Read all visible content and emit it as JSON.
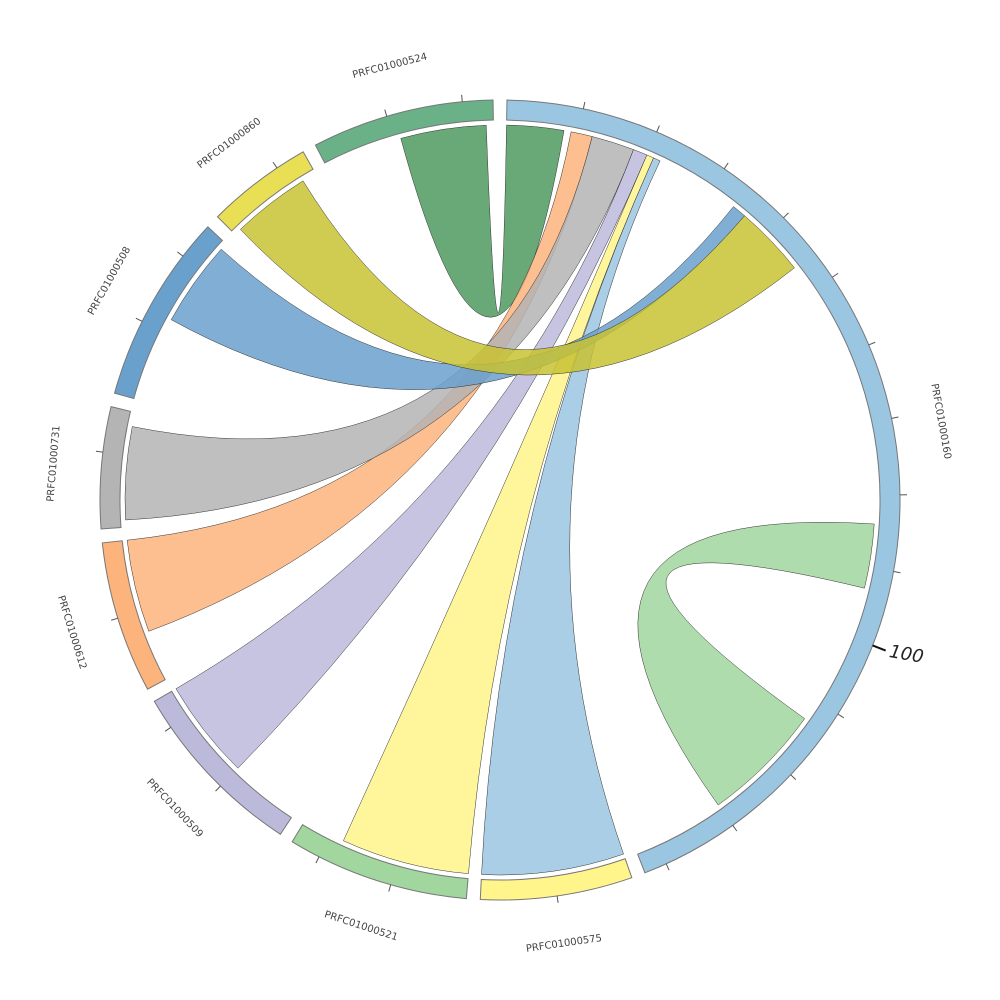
{
  "chart_data": {
    "type": "chord",
    "tick_interval": 10,
    "segments": [
      {
        "name": "PRFC01000160",
        "length": 143,
        "color": "#9ac6e2",
        "labeled_ticks": [
          100
        ]
      },
      {
        "name": "PRFC01000575",
        "length": 20,
        "color": "#fff58a"
      },
      {
        "name": "PRFC01000521",
        "length": 24,
        "color": "#a1d69e"
      },
      {
        "name": "PRFC01000509",
        "length": 24,
        "color": "#bcbadb"
      },
      {
        "name": "PRFC01000612",
        "length": 20,
        "color": "#fdb37c"
      },
      {
        "name": "PRFC01000731",
        "length": 16,
        "color": "#b4b4b4"
      },
      {
        "name": "PRFC01000508",
        "length": 25,
        "color": "#6aa0cc"
      },
      {
        "name": "PRFC01000860",
        "length": 14,
        "color": "#e9df55"
      },
      {
        "name": "PRFC01000524",
        "length": 24,
        "color": "#6ab187"
      }
    ],
    "links": [
      {
        "source": {
          "segment": 8,
          "start": 11,
          "end": 23
        },
        "target": {
          "segment": 0,
          "start": 0,
          "end": 8
        },
        "color": "#4f9a5f"
      },
      {
        "source": {
          "segment": 4,
          "start": 7,
          "end": 20
        },
        "target": {
          "segment": 0,
          "start": 9,
          "end": 12
        },
        "color": "#fdb37c"
      },
      {
        "source": {
          "segment": 5,
          "start": 1,
          "end": 14
        },
        "target": {
          "segment": 0,
          "start": 12,
          "end": 18
        },
        "color": "#b4b4b4"
      },
      {
        "source": {
          "segment": 3,
          "start": 10,
          "end": 24
        },
        "target": {
          "segment": 0,
          "start": 18,
          "end": 20
        },
        "color": "#bcbadb"
      },
      {
        "source": {
          "segment": 2,
          "start": 0,
          "end": 18
        },
        "target": {
          "segment": 0,
          "start": 20,
          "end": 21
        },
        "color": "#fff58a"
      },
      {
        "source": {
          "segment": 1,
          "start": 0,
          "end": 20
        },
        "target": {
          "segment": 0,
          "start": 21,
          "end": 22
        },
        "color": "#9ac6e2"
      },
      {
        "source": {
          "segment": 6,
          "start": 12,
          "end": 24
        },
        "target": {
          "segment": 0,
          "start": 34,
          "end": 36
        },
        "color": "#6aa0cc"
      },
      {
        "source": {
          "segment": 7,
          "start": 1,
          "end": 12
        },
        "target": {
          "segment": 0,
          "start": 36,
          "end": 46
        },
        "color": "#c8c233"
      },
      {
        "source": {
          "segment": 0,
          "start": 84,
          "end": 93
        },
        "target": {
          "segment": 0,
          "start": 113,
          "end": 130
        },
        "color": "#a1d69e"
      }
    ]
  }
}
